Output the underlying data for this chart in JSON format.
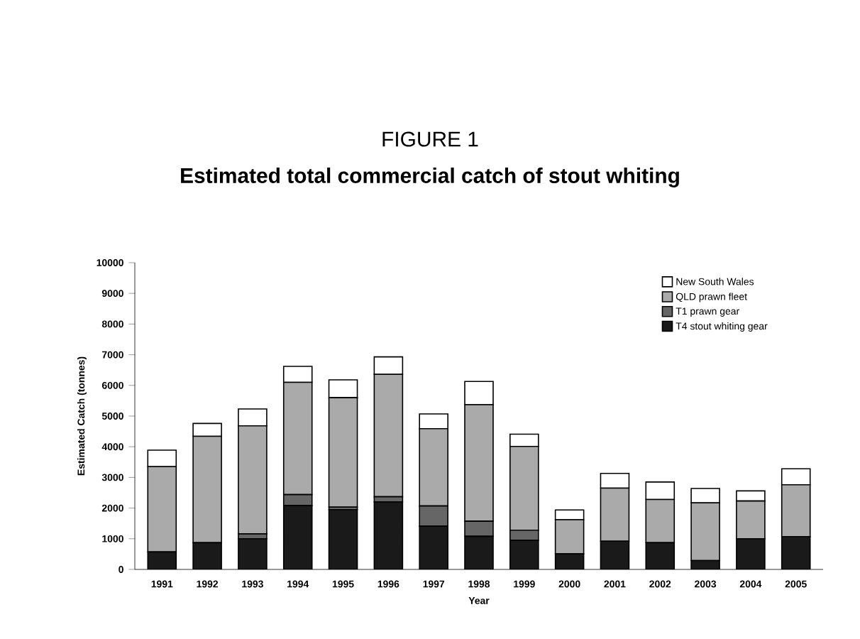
{
  "chart_data": {
    "type": "bar",
    "stacked": true,
    "title": "FIGURE 1",
    "subtitle": "Estimated total commercial catch of stout whiting",
    "xlabel": "Year",
    "ylabel": "Estimated Catch (tonnes)",
    "categories": [
      "1991",
      "1992",
      "1993",
      "1994",
      "1995",
      "1996",
      "1997",
      "1998",
      "1999",
      "2000",
      "2001",
      "2002",
      "2003",
      "2004",
      "2005"
    ],
    "series": [
      {
        "name": "T4 stout whiting gear",
        "color": "#1a1a1a",
        "values": [
          570,
          870,
          1000,
          2080,
          1950,
          2200,
          1410,
          1080,
          950,
          510,
          920,
          870,
          290,
          1000,
          1070
        ]
      },
      {
        "name": "T1 prawn gear",
        "color": "#666666",
        "values": [
          0,
          0,
          160,
          360,
          80,
          170,
          660,
          490,
          330,
          0,
          0,
          0,
          0,
          0,
          0
        ]
      },
      {
        "name": "QLD prawn fleet",
        "color": "#aaaaaa",
        "values": [
          2780,
          3470,
          3520,
          3660,
          3570,
          3990,
          2520,
          3800,
          2730,
          1110,
          1730,
          1410,
          1880,
          1230,
          1690
        ]
      },
      {
        "name": "New South Wales",
        "color": "#ffffff",
        "values": [
          540,
          420,
          550,
          520,
          580,
          570,
          480,
          760,
          400,
          320,
          480,
          570,
          470,
          330,
          520
        ]
      }
    ],
    "ylim": [
      0,
      10000
    ],
    "yticks": [
      0,
      1000,
      2000,
      3000,
      4000,
      5000,
      6000,
      7000,
      8000,
      9000,
      10000
    ],
    "legend": "top right",
    "grid": false
  }
}
